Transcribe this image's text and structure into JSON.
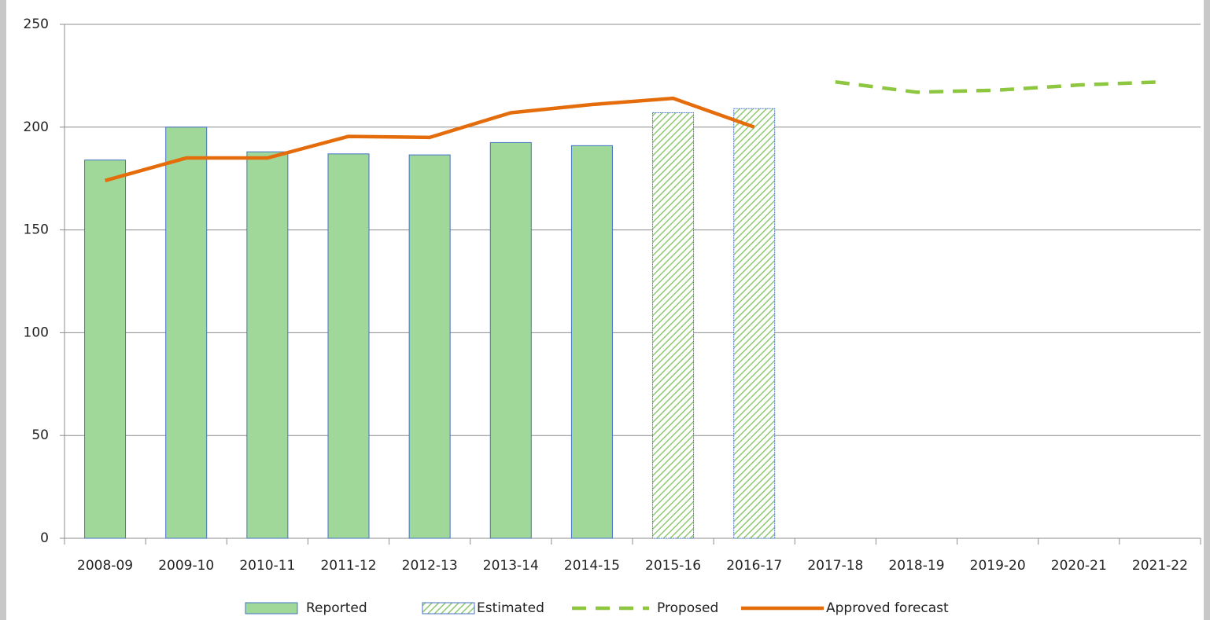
{
  "chart_data": {
    "type": "bar",
    "categories": [
      "2008-09",
      "2009-10",
      "2010-11",
      "2011-12",
      "2012-13",
      "2013-14",
      "2014-15",
      "2015-16",
      "2016-17",
      "2017-18",
      "2018-19",
      "2019-20",
      "2020-21",
      "2021-22"
    ],
    "series": [
      {
        "name": "Reported",
        "type": "bar",
        "color": "#a0d89a",
        "values": [
          184,
          200,
          188,
          187,
          186.5,
          192.5,
          191,
          null,
          null,
          null,
          null,
          null,
          null,
          null
        ]
      },
      {
        "name": "Estimated",
        "type": "bar",
        "color": "#8fca6f",
        "hatched": true,
        "values": [
          null,
          null,
          null,
          null,
          null,
          null,
          null,
          207,
          209,
          null,
          null,
          null,
          null,
          null
        ]
      },
      {
        "name": "Proposed",
        "type": "line",
        "color": "#8dc63f",
        "dashed": true,
        "values": [
          null,
          null,
          null,
          null,
          null,
          null,
          null,
          null,
          null,
          222,
          217,
          218,
          220.5,
          222
        ]
      },
      {
        "name": "Approved forecast",
        "type": "line",
        "color": "#e46c0a",
        "values": [
          174,
          185,
          185,
          195.5,
          195,
          207,
          211,
          214,
          200,
          null,
          null,
          null,
          null,
          null
        ]
      }
    ],
    "ylim": [
      0,
      250
    ],
    "yticks": [
      0,
      50,
      100,
      150,
      200,
      250
    ],
    "grid": true,
    "legend": "bottom"
  }
}
